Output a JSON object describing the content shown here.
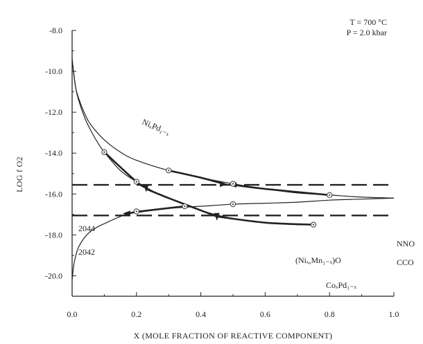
{
  "chart_data": {
    "type": "line",
    "xlabel": "X (MOLE FRACTION OF REACTIVE COMPONENT)",
    "ylabel": "LOG f O2",
    "xlim": [
      0.0,
      1.0
    ],
    "ylim": [
      -21.0,
      -8.0
    ],
    "x_ticks": [
      "0.0",
      "0.2",
      "0.4",
      "0.6",
      "0.8",
      "1.0"
    ],
    "y_ticks": [
      "-8.0",
      "-10.0",
      "-12.0",
      "-14.0",
      "-16.0",
      "-18.0",
      "-20.0"
    ],
    "x_tick_values": [
      0.0,
      0.2,
      0.4,
      0.6,
      0.8,
      1.0
    ],
    "y_tick_values": [
      -8.0,
      -10.0,
      -12.0,
      -14.0,
      -16.0,
      -18.0,
      -20.0
    ],
    "conditions": [
      "T = 700 °C",
      "P = 2.0 kbar"
    ],
    "buffers": [
      {
        "name": "NNO",
        "y": -16.2
      },
      {
        "name": "CCO",
        "y": -17.5
      }
    ],
    "reference_lines": [
      {
        "name": "2044",
        "y": -15.55
      },
      {
        "name": "2042",
        "y": -17.05
      }
    ],
    "series": [
      {
        "name": "NiₓPd₁₋ₓ",
        "x": [
          0.0,
          0.01,
          0.02,
          0.04,
          0.06,
          0.1,
          0.15,
          0.2,
          0.3,
          0.4,
          0.5,
          0.6,
          0.7,
          0.8,
          0.9,
          1.0
        ],
        "y": [
          -9.4,
          -10.7,
          -11.3,
          -12.1,
          -12.65,
          -13.35,
          -13.95,
          -14.35,
          -14.85,
          -15.2,
          -15.5,
          -15.75,
          -15.95,
          -16.05,
          -16.15,
          -16.2
        ]
      },
      {
        "name": "CoₓPd₁₋ₓ",
        "x": [
          0.0,
          0.01,
          0.02,
          0.04,
          0.06,
          0.08,
          0.1,
          0.15,
          0.2,
          0.25,
          0.3,
          0.4,
          0.5,
          0.6,
          0.7,
          0.75
        ],
        "y": [
          -9.4,
          -10.7,
          -11.4,
          -12.3,
          -12.95,
          -13.5,
          -13.95,
          -14.85,
          -15.4,
          -15.85,
          -16.2,
          -16.8,
          -17.2,
          -17.4,
          -17.5,
          -17.5
        ]
      },
      {
        "name": "(Niₓ,Mn₁₋ₓ)O",
        "x": [
          0.0,
          0.005,
          0.01,
          0.02,
          0.04,
          0.06,
          0.08,
          0.1,
          0.15,
          0.2,
          0.3,
          0.4,
          0.5,
          0.6,
          0.7,
          0.8,
          0.9,
          1.0
        ],
        "y": [
          -20.2,
          -19.5,
          -19.1,
          -18.6,
          -18.1,
          -17.8,
          -17.6,
          -17.45,
          -17.1,
          -16.85,
          -16.7,
          -16.6,
          -16.5,
          -16.45,
          -16.4,
          -16.3,
          -16.25,
          -16.2
        ]
      }
    ],
    "sample_points": [
      {
        "x": 0.1,
        "y": -13.95
      },
      {
        "x": 0.2,
        "y": -15.4
      },
      {
        "x": 0.3,
        "y": -14.85
      },
      {
        "x": 0.5,
        "y": -15.5
      },
      {
        "x": 0.8,
        "y": -16.05
      },
      {
        "x": 0.75,
        "y": -17.5
      },
      {
        "x": 0.35,
        "y": -16.6
      },
      {
        "x": 0.5,
        "y": -16.5
      },
      {
        "x": 0.2,
        "y": -16.85
      }
    ],
    "reversal_paths": [
      {
        "points": [
          [
            0.1,
            -13.95
          ],
          [
            0.2,
            -15.4
          ],
          [
            0.23,
            -15.7
          ]
        ]
      },
      {
        "points": [
          [
            0.3,
            -14.85
          ],
          [
            0.4,
            -15.2
          ],
          [
            0.47,
            -15.5
          ]
        ]
      },
      {
        "points": [
          [
            0.8,
            -16.05
          ],
          [
            0.6,
            -15.75
          ],
          [
            0.5,
            -15.55
          ]
        ]
      },
      {
        "points": [
          [
            0.23,
            -15.75
          ],
          [
            0.3,
            -16.2
          ],
          [
            0.4,
            -16.8
          ],
          [
            0.45,
            -17.1
          ]
        ]
      },
      {
        "points": [
          [
            0.75,
            -17.5
          ],
          [
            0.6,
            -17.4
          ],
          [
            0.45,
            -17.1
          ]
        ]
      },
      {
        "points": [
          [
            0.35,
            -16.6
          ],
          [
            0.25,
            -16.78
          ],
          [
            0.17,
            -16.95
          ]
        ]
      }
    ],
    "arrow_points": [
      {
        "x": 0.23,
        "y": -15.7,
        "dir": "down"
      },
      {
        "x": 0.47,
        "y": -15.52,
        "dir": "right"
      },
      {
        "x": 0.5,
        "y": -15.55,
        "dir": "left"
      },
      {
        "x": 0.17,
        "y": -16.95,
        "dir": "left"
      },
      {
        "x": 0.45,
        "y": -17.1,
        "dir": "down"
      }
    ],
    "labels": {
      "ni_pd": "NiₓPd₁₋ₓ",
      "co_pd": "CoₓPd₁₋ₓ",
      "ni_mn_o": "(Niₓ,Mn₁₋ₓ)O",
      "nno": "NNO",
      "cco": "CCO",
      "ref_2044": "2044",
      "ref_2042": "2042"
    },
    "grid": false,
    "legend": "none"
  },
  "colors": {
    "line": "#222222",
    "marker_fill": "#ffffff",
    "marker_stroke": "#444444"
  }
}
